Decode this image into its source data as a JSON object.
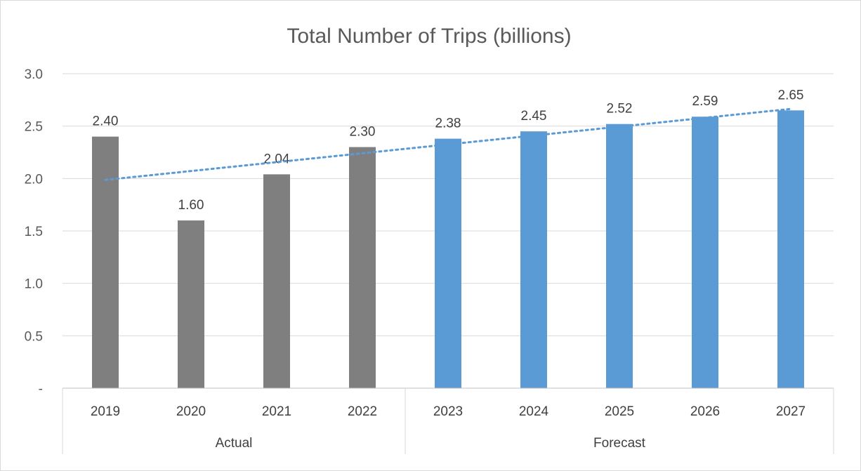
{
  "chart_data": {
    "type": "bar",
    "title": "Total Number of Trips (billions)",
    "categories": [
      "2019",
      "2020",
      "2021",
      "2022",
      "2023",
      "2024",
      "2025",
      "2026",
      "2027"
    ],
    "values": [
      2.4,
      1.6,
      2.04,
      2.3,
      2.38,
      2.45,
      2.52,
      2.59,
      2.65
    ],
    "data_labels": [
      "2.40",
      "1.60",
      "2.04",
      "2.30",
      "2.38",
      "2.45",
      "2.52",
      "2.59",
      "2.65"
    ],
    "groups": [
      {
        "label": "Actual",
        "categories": [
          "2019",
          "2020",
          "2021",
          "2022"
        ],
        "color": "#7f7f7f"
      },
      {
        "label": "Forecast",
        "categories": [
          "2023",
          "2024",
          "2025",
          "2026",
          "2027"
        ],
        "color": "#5b9bd5"
      }
    ],
    "y_ticks": [
      "-",
      "0.5",
      "1.0",
      "1.5",
      "2.0",
      "2.5",
      "3.0"
    ],
    "ylim": [
      0,
      3.0
    ],
    "gridlines": true,
    "trendline": {
      "type": "linear",
      "style": "dotted",
      "color": "#5b9bd5"
    },
    "legend": "none"
  }
}
